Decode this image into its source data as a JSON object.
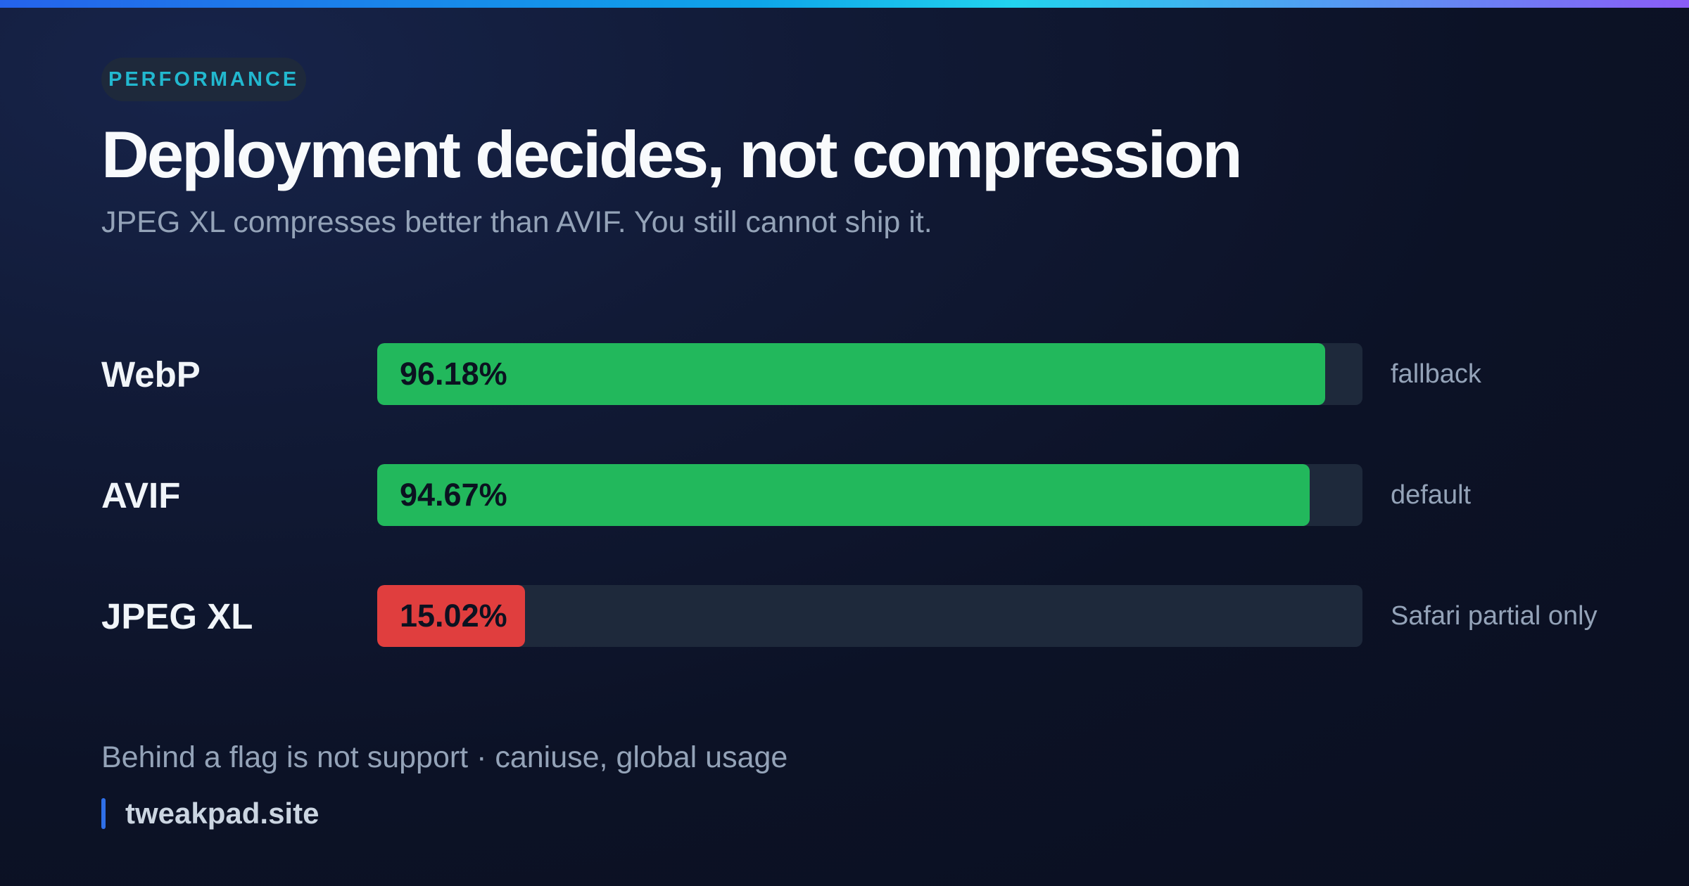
{
  "badge": "PERFORMANCE",
  "title": "Deployment decides, not compression",
  "subtitle": "JPEG XL compresses better than AVIF. You still cannot ship it.",
  "footnote": "Behind a flag is not support · caniuse, global usage",
  "brand": "tweakpad.site",
  "colors": {
    "accent": "#22b8cf",
    "good": "#22b85c",
    "bad": "#e03e3e",
    "track": "#1e293b",
    "brand_bar": "#2f6fe8"
  },
  "chart_data": {
    "type": "bar",
    "orientation": "horizontal",
    "categories": [
      "WebP",
      "AVIF",
      "JPEG XL"
    ],
    "values": [
      96.18,
      94.67,
      15.02
    ],
    "value_labels": [
      "96.18%",
      "94.67%",
      "15.02%"
    ],
    "notes": [
      "fallback",
      "default",
      "Safari partial only"
    ],
    "bar_colors": [
      "#22b85c",
      "#22b85c",
      "#e03e3e"
    ],
    "xlim": [
      0,
      100
    ],
    "grid": false
  }
}
